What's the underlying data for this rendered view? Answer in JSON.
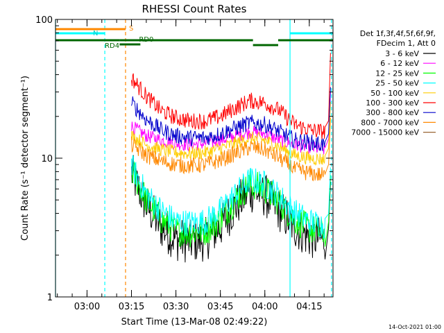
{
  "chart_data": {
    "type": "line",
    "title": "RHESSI Count Rates",
    "xlabel": "Start Time (13-Mar-08 02:49:22)",
    "ylabel": "Count Rate (s⁻¹ detector segment⁻¹)",
    "yscale": "log",
    "ylim": [
      1,
      100
    ],
    "xlim": [
      "02:49:22",
      "04:23:00"
    ],
    "x_ticks": [
      "03:00",
      "03:15",
      "03:30",
      "03:45",
      "04:00",
      "04:15"
    ],
    "y_ticks": [
      "1",
      "10",
      "100"
    ],
    "grid": false,
    "legend_position": "right",
    "legend_header": [
      "Det 1f,3f,4f,5f,6f,9f,",
      "FDecim 1, Att 0"
    ],
    "timestamp": "14-Oct-2021 01:00",
    "series": [
      {
        "name": "3 - 6 keV",
        "color": "#000000",
        "values": [
          [
            "03:15",
            7.8
          ],
          [
            "03:20",
            4.6
          ],
          [
            "03:25",
            3.2
          ],
          [
            "03:30",
            2.6
          ],
          [
            "03:35",
            2.5
          ],
          [
            "03:40",
            2.6
          ],
          [
            "03:45",
            3.2
          ],
          [
            "03:50",
            4.5
          ],
          [
            "03:55",
            5.8
          ],
          [
            "04:00",
            5.4
          ],
          [
            "04:05",
            4.2
          ],
          [
            "04:10",
            3.2
          ],
          [
            "04:15",
            2.7
          ],
          [
            "04:20",
            2.6
          ]
        ]
      },
      {
        "name": "6 - 12 keV",
        "color": "#ff00ff",
        "values": [
          [
            "03:15",
            17.0
          ],
          [
            "03:20",
            14.5
          ],
          [
            "03:25",
            13.5
          ],
          [
            "03:30",
            12.8
          ],
          [
            "03:35",
            12.5
          ],
          [
            "03:40",
            12.8
          ],
          [
            "03:45",
            13.5
          ],
          [
            "03:50",
            14.5
          ],
          [
            "03:55",
            15.5
          ],
          [
            "04:00",
            15.0
          ],
          [
            "04:05",
            13.5
          ],
          [
            "04:10",
            12.5
          ],
          [
            "04:15",
            12.0
          ],
          [
            "04:20",
            11.5
          ]
        ]
      },
      {
        "name": "12 - 25 keV",
        "color": "#00ff00",
        "values": [
          [
            "03:15",
            8.3
          ],
          [
            "03:20",
            5.0
          ],
          [
            "03:25",
            3.6
          ],
          [
            "03:30",
            3.0
          ],
          [
            "03:35",
            2.9
          ],
          [
            "03:40",
            3.0
          ],
          [
            "03:45",
            3.6
          ],
          [
            "03:50",
            5.0
          ],
          [
            "03:55",
            6.5
          ],
          [
            "04:00",
            6.0
          ],
          [
            "04:05",
            4.8
          ],
          [
            "04:10",
            3.6
          ],
          [
            "04:15",
            3.1
          ],
          [
            "04:20",
            2.9
          ]
        ]
      },
      {
        "name": "25 - 50 keV",
        "color": "#00ffff",
        "values": [
          [
            "03:15",
            8.8
          ],
          [
            "03:20",
            5.5
          ],
          [
            "03:25",
            4.2
          ],
          [
            "03:30",
            3.5
          ],
          [
            "03:35",
            3.4
          ],
          [
            "03:40",
            3.5
          ],
          [
            "03:45",
            4.2
          ],
          [
            "03:50",
            5.5
          ],
          [
            "03:55",
            7.0
          ],
          [
            "04:00",
            6.5
          ],
          [
            "04:05",
            5.3
          ],
          [
            "04:10",
            4.1
          ],
          [
            "04:15",
            3.5
          ],
          [
            "04:20",
            3.3
          ]
        ]
      },
      {
        "name": "50 - 100 keV",
        "color": "#ffcc00",
        "values": [
          [
            "03:15",
            14.5
          ],
          [
            "03:20",
            12.5
          ],
          [
            "03:25",
            11.5
          ],
          [
            "03:30",
            11.0
          ],
          [
            "03:35",
            10.8
          ],
          [
            "03:40",
            11.0
          ],
          [
            "03:45",
            11.8
          ],
          [
            "03:50",
            12.8
          ],
          [
            "03:55",
            14.0
          ],
          [
            "04:00",
            13.5
          ],
          [
            "04:05",
            12.0
          ],
          [
            "04:10",
            10.5
          ],
          [
            "04:15",
            10.0
          ],
          [
            "04:20",
            9.8
          ]
        ]
      },
      {
        "name": "100 - 300 keV",
        "color": "#ff0000",
        "values": [
          [
            "03:15",
            38.0
          ],
          [
            "03:20",
            28.0
          ],
          [
            "03:25",
            22.0
          ],
          [
            "03:30",
            19.5
          ],
          [
            "03:35",
            18.5
          ],
          [
            "03:40",
            18.5
          ],
          [
            "03:45",
            20.0
          ],
          [
            "03:50",
            23.0
          ],
          [
            "03:55",
            26.0
          ],
          [
            "04:00",
            25.0
          ],
          [
            "04:05",
            22.0
          ],
          [
            "04:10",
            17.5
          ],
          [
            "04:15",
            16.0
          ],
          [
            "04:20",
            15.5
          ]
        ]
      },
      {
        "name": "300 - 800 keV",
        "color": "#0000cc",
        "values": [
          [
            "03:15",
            25.0
          ],
          [
            "03:20",
            19.0
          ],
          [
            "03:25",
            16.0
          ],
          [
            "03:30",
            14.5
          ],
          [
            "03:35",
            14.0
          ],
          [
            "03:40",
            14.0
          ],
          [
            "03:45",
            15.0
          ],
          [
            "03:50",
            16.5
          ],
          [
            "03:55",
            18.0
          ],
          [
            "04:00",
            17.5
          ],
          [
            "04:05",
            15.5
          ],
          [
            "04:10",
            13.5
          ],
          [
            "04:15",
            13.0
          ],
          [
            "04:20",
            12.5
          ]
        ]
      },
      {
        "name": "800 - 7000 keV",
        "color": "#ff8800",
        "values": [
          [
            "03:15",
            12.5
          ],
          [
            "03:20",
            10.5
          ],
          [
            "03:25",
            9.5
          ],
          [
            "03:30",
            9.0
          ],
          [
            "03:35",
            8.8
          ],
          [
            "03:40",
            9.0
          ],
          [
            "03:45",
            9.7
          ],
          [
            "03:50",
            10.8
          ],
          [
            "03:55",
            12.0
          ],
          [
            "04:00",
            11.5
          ],
          [
            "04:05",
            10.0
          ],
          [
            "04:10",
            8.3
          ],
          [
            "04:15",
            7.8
          ],
          [
            "04:20",
            7.5
          ]
        ]
      },
      {
        "name": "7000 - 15000 keV",
        "color": "#996633",
        "values": []
      }
    ],
    "state_bars": [
      {
        "label": "S",
        "color": "#ff8800",
        "ranges": [
          [
            "02:49:22",
            "03:13:00"
          ]
        ]
      },
      {
        "label": "N",
        "color": "#00ffff",
        "ranges": [
          [
            "02:49:22",
            "03:06:00"
          ],
          [
            "04:08:30",
            "04:23:00"
          ]
        ]
      },
      {
        "label": "",
        "color": "#006600",
        "ranges": [
          [
            "02:49:22",
            "03:11:00"
          ],
          [
            "03:11:00",
            "03:56:00"
          ],
          [
            "04:04:30",
            "04:23:00"
          ]
        ]
      },
      {
        "label": "RD4",
        "color": "#006600",
        "ranges": [
          [
            "03:11:00",
            "03:18:00"
          ]
        ]
      },
      {
        "label": "RD0",
        "color": "#006600",
        "ranges": [
          [
            "03:56:00",
            "04:04:30"
          ]
        ]
      }
    ],
    "vlines": [
      {
        "time": "02:49:22",
        "color": "#00ffff",
        "dashed": false
      },
      {
        "time": "03:06:00",
        "color": "#00ffff",
        "dashed": true
      },
      {
        "time": "03:13:00",
        "color": "#ff8800",
        "dashed": true
      },
      {
        "time": "04:08:30",
        "color": "#00ffff",
        "dashed": false
      },
      {
        "time": "04:22:30",
        "color": "#00ffff",
        "dashed": true
      }
    ]
  }
}
